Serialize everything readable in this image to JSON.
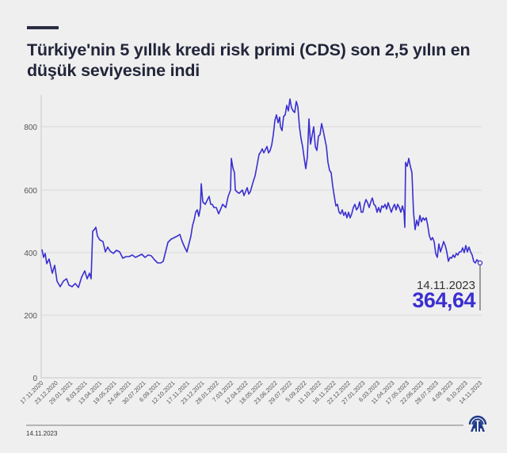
{
  "header": {
    "title": "Türkiye'nin 5 yıllık kredi risk primi (CDS) son 2,5 yılın en düşük seviyesine indi"
  },
  "callout": {
    "date": "14.11.2023",
    "value": "364,64"
  },
  "footer": {
    "date": "14.11.2023",
    "logo": "aa-logo-icon"
  },
  "colors": {
    "line": "#3a2fd0",
    "background": "#efefef",
    "title": "#23263a"
  },
  "chart_data": {
    "type": "line",
    "title": "Türkiye'nin 5 yıllık kredi risk primi (CDS) son 2,5 yılın en düşük seviyesine indi",
    "xlabel": "",
    "ylabel": "",
    "ylim": [
      0,
      900
    ],
    "yticks": [
      0,
      200,
      400,
      600,
      800
    ],
    "grid": true,
    "legend": "none",
    "x_tick_labels": [
      "17.11.2020",
      "23.12.2020",
      "29.01.2021",
      "8.03.2021",
      "13.04.2021",
      "19.05.2021",
      "24.06.2021",
      "30.07.2021",
      "6.09.2021",
      "12.10.2021",
      "17.11.2021",
      "23.12.2021",
      "28.01.2022",
      "7.03.2022",
      "12.04.2022",
      "18.05.2022",
      "23.06.2022",
      "29.07.2022",
      "5.09.2022",
      "11.10.2022",
      "16.11.2022",
      "22.12.2022",
      "27.01.2023",
      "6.03.2023",
      "11.04.2023",
      "17.05.2023",
      "22.06.2023",
      "28.07.2023",
      "4.09.2023",
      "9.10.2023",
      "14.11.2023"
    ],
    "series": [
      {
        "name": "CDS (5 yıllık)",
        "x": [
          "17.11.2020",
          "23.12.2020",
          "29.01.2021",
          "8.03.2021",
          "13.04.2021",
          "19.05.2021",
          "24.06.2021",
          "30.07.2021",
          "6.09.2021",
          "12.10.2021",
          "17.11.2021",
          "23.12.2021",
          "28.01.2022",
          "7.03.2022",
          "12.04.2022",
          "18.05.2022",
          "23.06.2022",
          "29.07.2022",
          "5.09.2022",
          "11.10.2022",
          "16.11.2022",
          "22.12.2022",
          "27.01.2023",
          "6.03.2023",
          "11.04.2023",
          "17.05.2023",
          "22.06.2023",
          "28.07.2023",
          "4.09.2023",
          "9.10.2023",
          "14.11.2023"
        ],
        "values": [
          405,
          330,
          300,
          295,
          475,
          400,
          385,
          385,
          375,
          420,
          430,
          550,
          570,
          600,
          570,
          710,
          800,
          890,
          680,
          790,
          560,
          530,
          545,
          560,
          550,
          530,
          500,
          395,
          390,
          415,
          364.64
        ]
      }
    ],
    "annotations": [
      {
        "x": "14.11.2023",
        "y": 364.64,
        "text": "364,64"
      }
    ]
  }
}
